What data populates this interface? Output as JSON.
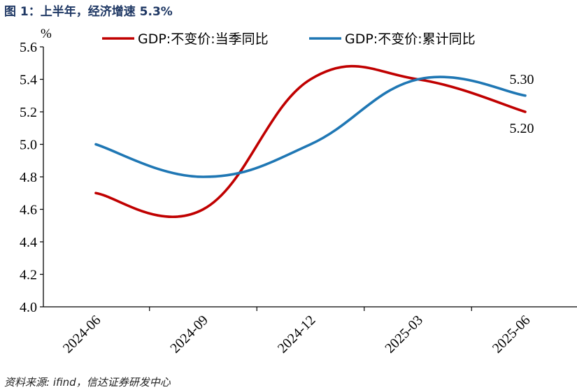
{
  "figure_title": "图 1：上半年，经济增速 5.3%",
  "source": "资料来源: ifind，信达证券研发中心",
  "colors": {
    "title": "#1f3864",
    "series_quarterly": "#c00000",
    "series_cumulative": "#1f77b4"
  },
  "chart_data": {
    "type": "line",
    "title": "",
    "xlabel": "",
    "ylabel": "%",
    "ylim": [
      4.0,
      5.6
    ],
    "yticks": [
      "4.0",
      "4.2",
      "4.4",
      "4.6",
      "4.8",
      "5.0",
      "5.2",
      "5.4",
      "5.6"
    ],
    "categories": [
      "2024-06",
      "2024-09",
      "2024-12",
      "2025-03",
      "2025-06"
    ],
    "grid": false,
    "smooth": true,
    "legend_position": "top",
    "series": [
      {
        "name": "GDP:不变价:当季同比",
        "values": [
          4.7,
          4.6,
          5.4,
          5.4,
          5.2
        ],
        "color": "#c00000"
      },
      {
        "name": "GDP:不变价:累计同比",
        "values": [
          5.0,
          4.8,
          5.0,
          5.4,
          5.3
        ],
        "color": "#1f77b4"
      }
    ],
    "data_labels": [
      {
        "series": 1,
        "index": 4,
        "text": "5.30",
        "position": "above"
      },
      {
        "series": 0,
        "index": 4,
        "text": "5.20",
        "position": "below"
      }
    ]
  }
}
